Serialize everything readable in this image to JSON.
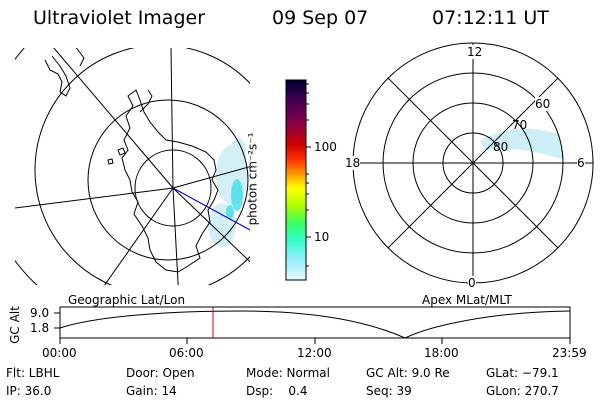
{
  "header": {
    "title": "Ultraviolet Imager",
    "date": "09 Sep 07",
    "time": "07:12:11 UT"
  },
  "left_map": {
    "label": "Geographic Lat/Lon"
  },
  "right_map": {
    "label": "Apex MLat/MLT",
    "mlt_labels": [
      "12",
      "18",
      "6",
      "0"
    ],
    "mlat_labels": [
      "60",
      "70",
      "80"
    ]
  },
  "colorbar": {
    "unit_label": "photon cm⁻²s⁻¹",
    "tick_labels": [
      "100",
      "10"
    ],
    "colors": [
      "#000033",
      "#330066",
      "#660066",
      "#990033",
      "#cc0000",
      "#ff3300",
      "#ff9900",
      "#ffff00",
      "#99ff00",
      "#33ff66",
      "#33ffcc",
      "#99eeff",
      "#e0f4ff"
    ]
  },
  "altitude_plot": {
    "ylabel": "GC Alt",
    "y_ticks": [
      "9.0",
      "1.8"
    ],
    "x_ticks": [
      "00:00",
      "06:00",
      "12:00",
      "18:00",
      "23:59"
    ],
    "marker_time": "07:12"
  },
  "status": {
    "flt": "Flt: LBHL",
    "ip": "IP: 36.0",
    "door": "Door: Open",
    "gain": "Gain: 14",
    "mode": "Mode: Normal",
    "dsp": "Dsp:    0.4",
    "gcalt": "GC Alt: 9.0 Re",
    "seq": "Seq: 39",
    "glat": "GLat: −79.1",
    "glon": "GLon: 270.7"
  }
}
